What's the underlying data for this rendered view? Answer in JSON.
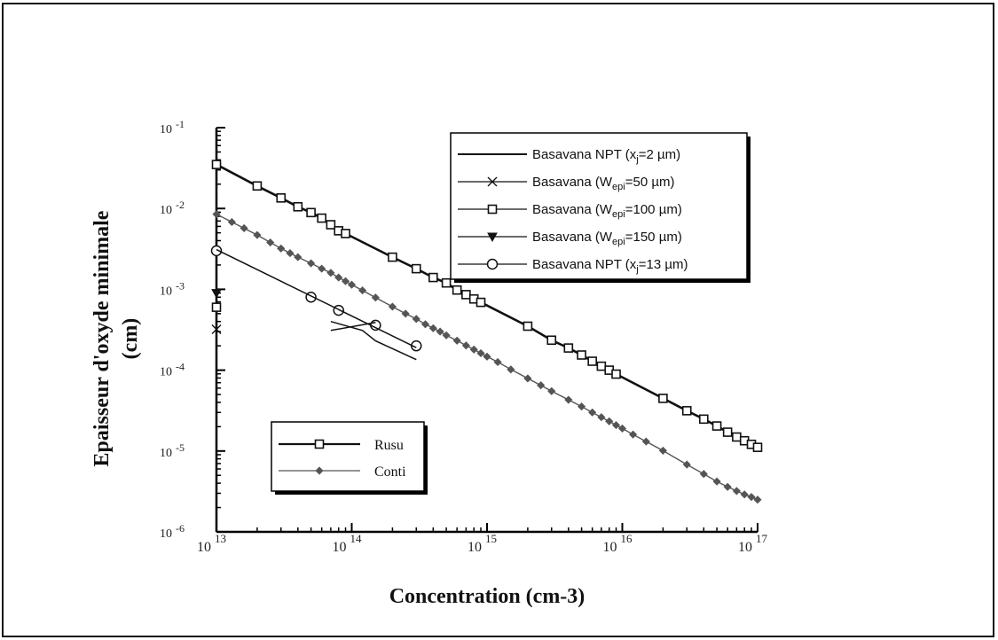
{
  "chart_data": {
    "type": "line",
    "xlabel": "Concentration (cm-3)",
    "ylabel_lines": [
      "Epaisseur d'oxyde minimale",
      "(cm)"
    ],
    "x_scale": "log",
    "y_scale": "log",
    "xlim": [
      10000000000000.0,
      1e+17
    ],
    "ylim": [
      1e-06,
      0.1
    ],
    "grid": false,
    "x_ticks": [
      {
        "value": 10000000000000.0,
        "base": "10",
        "exp": "13"
      },
      {
        "value": 100000000000000.0,
        "base": "10",
        "exp": "14"
      },
      {
        "value": 1000000000000000.0,
        "base": "10",
        "exp": "15"
      },
      {
        "value": 1e+16,
        "base": "10",
        "exp": "16"
      },
      {
        "value": 1e+17,
        "base": "10",
        "exp": "17"
      }
    ],
    "y_ticks": [
      {
        "value": 0.1,
        "base": "10",
        "exp": "-1"
      },
      {
        "value": 0.01,
        "base": "10",
        "exp": "-2"
      },
      {
        "value": 0.001,
        "base": "10",
        "exp": "-3"
      },
      {
        "value": 0.0001,
        "base": "10",
        "exp": "-4"
      },
      {
        "value": 1e-05,
        "base": "10",
        "exp": "-5"
      },
      {
        "value": 1e-06,
        "base": "10",
        "exp": "-6"
      }
    ],
    "legend_top": {
      "placement": "top-right",
      "entries": [
        {
          "key": "npt2",
          "parts": [
            [
              "t",
              "Basavana NPT (x"
            ],
            [
              "sub",
              "j"
            ],
            [
              "t",
              "=2 µm)"
            ]
          ]
        },
        {
          "key": "w50",
          "parts": [
            [
              "t",
              "Basavana (W"
            ],
            [
              "sub",
              "epi"
            ],
            [
              "t",
              "=50 µm)"
            ]
          ]
        },
        {
          "key": "w100",
          "parts": [
            [
              "t",
              "Basavana (W"
            ],
            [
              "sub",
              "epi"
            ],
            [
              "t",
              "=100 µm)"
            ]
          ]
        },
        {
          "key": "w150",
          "parts": [
            [
              "t",
              "Basavana (W"
            ],
            [
              "sub",
              "epi"
            ],
            [
              "t",
              "=150 µm)"
            ]
          ]
        },
        {
          "key": "npt13",
          "parts": [
            [
              "t",
              "Basavana NPT (x"
            ],
            [
              "sub",
              "j"
            ],
            [
              "t",
              "=13 µm)"
            ]
          ]
        }
      ]
    },
    "legend_bottom": {
      "placement": "bottom-left",
      "entries": [
        {
          "key": "rusu",
          "label": "Rusu"
        },
        {
          "key": "conti",
          "label": "Conti"
        }
      ]
    },
    "series": [
      {
        "key": "rusu",
        "name": "Rusu",
        "marker": "square",
        "color": "#111111",
        "x": [
          10000000000000.0,
          20000000000000.0,
          30000000000000.0,
          40000000000000.0,
          50000000000000.0,
          60000000000000.0,
          70000000000000.0,
          80000000000000.0,
          90000000000000.0,
          200000000000000.0,
          300000000000000.0,
          400000000000000.0,
          500000000000000.0,
          600000000000000.0,
          700000000000000.0,
          800000000000000.0,
          900000000000000.0,
          2000000000000000.0,
          3000000000000000.0,
          4000000000000000.0,
          5000000000000000.0,
          6000000000000000.0,
          7000000000000000.0,
          8000000000000000.0,
          9000000000000000.0,
          2e+16,
          3e+16,
          4e+16,
          5e+16,
          6e+16,
          7e+16,
          8e+16,
          9e+16,
          1e+17
        ],
        "y": [
          0.035,
          0.019,
          0.0135,
          0.0105,
          0.0089,
          0.0076,
          0.0063,
          0.0053,
          0.0049,
          0.0025,
          0.0018,
          0.0014,
          0.0012,
          0.00098,
          0.00086,
          0.00076,
          0.00069,
          0.00035,
          0.000235,
          0.000188,
          0.000154,
          0.000129,
          0.000112,
          0.0001,
          8.94e-05,
          4.48e-05,
          3.15e-05,
          2.48e-05,
          2.04e-05,
          1.71e-05,
          1.49e-05,
          1.34e-05,
          1.21e-05,
          1.11e-05
        ]
      },
      {
        "key": "conti",
        "name": "Conti",
        "marker": "diamond",
        "color": "#555555",
        "x": [
          10000000000000.0,
          13000000000000.0,
          16000000000000.0,
          20000000000000.0,
          25000000000000.0,
          30000000000000.0,
          35000000000000.0,
          40000000000000.0,
          50000000000000.0,
          60000000000000.0,
          70000000000000.0,
          80000000000000.0,
          90000000000000.0,
          100000000000000.0,
          120000000000000.0,
          150000000000000.0,
          200000000000000.0,
          250000000000000.0,
          300000000000000.0,
          350000000000000.0,
          400000000000000.0,
          450000000000000.0,
          500000000000000.0,
          600000000000000.0,
          700000000000000.0,
          800000000000000.0,
          900000000000000.0,
          1000000000000000.0,
          1200000000000000.0,
          1500000000000000.0,
          2000000000000000.0,
          2500000000000000.0,
          3000000000000000.0,
          4000000000000000.0,
          5000000000000000.0,
          6000000000000000.0,
          7000000000000000.0,
          8000000000000000.0,
          9000000000000000.0,
          1e+16,
          1.2e+16,
          1.5e+16,
          2e+16,
          3e+16,
          4e+16,
          5e+16,
          6e+16,
          7e+16,
          8e+16,
          9e+16,
          1e+17
        ],
        "y": [
          0.0085,
          0.0068,
          0.0057,
          0.0047,
          0.0038,
          0.0032,
          0.0028,
          0.0025,
          0.0021,
          0.0018,
          0.0016,
          0.0014,
          0.00126,
          0.00114,
          0.00097,
          0.00079,
          0.00061,
          0.0005,
          0.00043,
          0.00037,
          0.00033,
          0.0003,
          0.00027,
          0.000232,
          0.000202,
          0.00018,
          0.000162,
          0.000147,
          0.000126,
          0.000102,
          7.9e-05,
          6.5e-05,
          5.5e-05,
          4.3e-05,
          3.55e-05,
          3e-05,
          2.62e-05,
          2.33e-05,
          2.09e-05,
          1.9e-05,
          1.6e-05,
          1.31e-05,
          1.01e-05,
          6.8e-06,
          5.2e-06,
          4.2e-06,
          3.6e-06,
          3.2e-06,
          2.9e-06,
          2.7e-06,
          2.5e-06
        ]
      },
      {
        "key": "npt13",
        "marker": "circle",
        "color": "#111111",
        "x": [
          10000000000000.0,
          50000000000000.0,
          80000000000000.0,
          150000000000000.0,
          300000000000000.0
        ],
        "y": [
          0.003,
          0.0008,
          0.00055,
          0.00036,
          0.0002
        ]
      },
      {
        "key": "npt13_line",
        "marker": "none",
        "color": "#111111",
        "x": [
          10000000000000.0,
          300000000000000.0
        ],
        "y": [
          0.0031,
          0.00019
        ]
      },
      {
        "key": "npt2",
        "marker": "none",
        "color": "#111111",
        "x": [
          70000000000000.0,
          120000000000000.0,
          150000000000000.0,
          300000000000000.0
        ],
        "y": [
          0.0004,
          0.00031,
          0.00023,
          0.000135
        ]
      },
      {
        "key": "npt2b",
        "marker": "none",
        "color": "#111111",
        "x": [
          70000000000000.0,
          150000000000000.0
        ],
        "y": [
          0.00031,
          0.00039
        ]
      },
      {
        "key": "w150",
        "marker": "triangle-down",
        "color": "#111111",
        "x": [
          10000000000000.0
        ],
        "y": [
          0.0009
        ]
      },
      {
        "key": "w100",
        "marker": "square",
        "color": "#111111",
        "x": [
          10000000000000.0
        ],
        "y": [
          0.0006
        ]
      },
      {
        "key": "w50",
        "marker": "x",
        "color": "#111111",
        "x": [
          10000000000000.0
        ],
        "y": [
          0.00032
        ]
      }
    ]
  }
}
